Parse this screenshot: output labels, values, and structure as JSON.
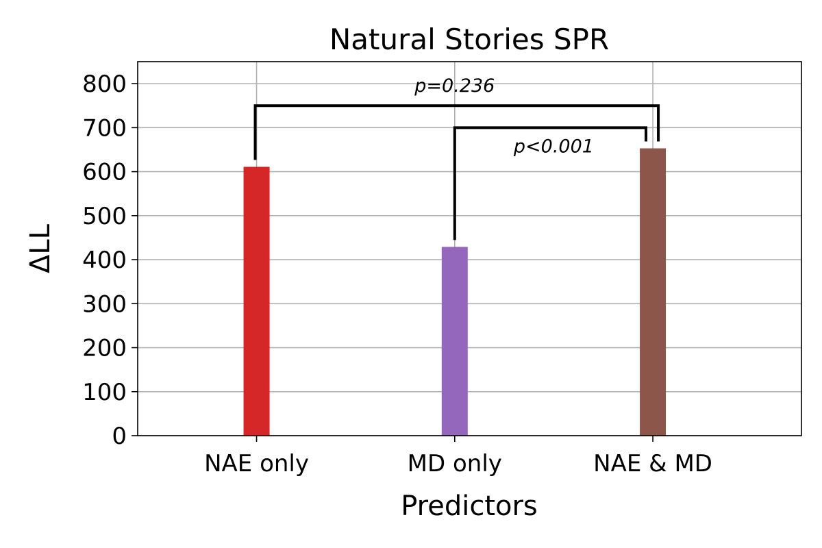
{
  "chart_data": {
    "type": "bar",
    "title": "Natural Stories SPR",
    "xlabel": "Predictors",
    "ylabel": "ΔLL",
    "categories": [
      "NAE only",
      "MD only",
      "NAE & MD"
    ],
    "values": [
      611,
      429,
      653
    ],
    "colors": [
      "#d62728",
      "#9467bd",
      "#8c564b"
    ],
    "ylim": [
      0,
      850
    ],
    "yticks": [
      0,
      100,
      200,
      300,
      400,
      500,
      600,
      700,
      800
    ],
    "grid": true,
    "legend": "none",
    "annotations": [
      {
        "text": "p=0.236",
        "from": "NAE only",
        "to": "NAE & MD",
        "bracket_y": 750
      },
      {
        "text": "p<0.001",
        "from": "MD only",
        "to": "NAE & MD",
        "bracket_y": 700
      }
    ]
  }
}
